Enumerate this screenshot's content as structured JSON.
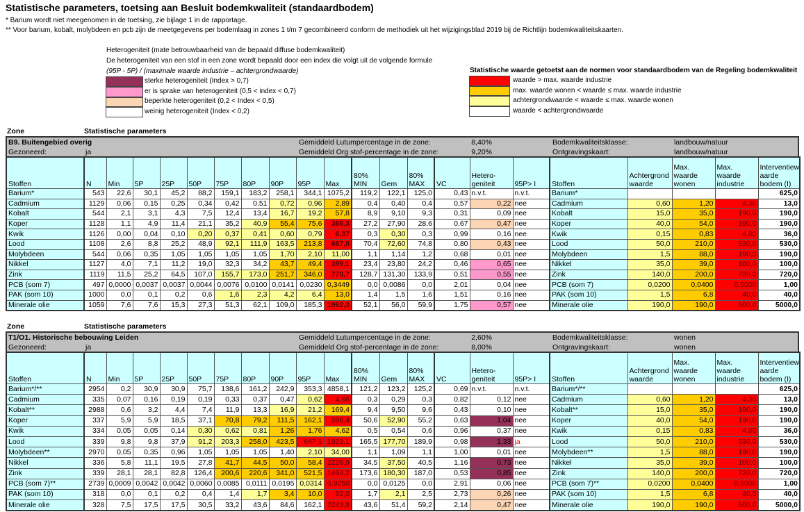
{
  "title": "Statistische parameters, toetsing aan Besluit bodemkwaliteit (standaardbodem)",
  "notes": [
    "* Barium wordt niet meegenomen in de toetsing, zie bijlage 1 in de rapportage.",
    "** Voor barium, kobalt, molybdeen en pcb zijn de meetgegevens per bodemlaag in zones 1 t/m 7 gecombineerd conform de methodiek uit het wijzigingsblad 2019 bij de Richtlijn bodemkwaliteitskaarten."
  ],
  "hetero_legend": {
    "heading": "Heterogeniteit (mate betrouwbaarheid van de bepaald diffuse bodemkwaliteit)",
    "description": "De heterogeniteit van een stof in een zone wordt bepaald door een index die volgt uit de volgende formule",
    "formula": "(95P - 5P) / (maximale waarde industrie – achtergrondwaarde)",
    "items": [
      {
        "label": "sterke heterogeniteit (Index > 0,7)",
        "color": "#953159"
      },
      {
        "label": "er is sprake van heterogeniteit (0,5 < index < 0,7)",
        "color": "#ff99cc"
      },
      {
        "label": "beperkte heterogeniteit (0,2 < Index < 0,5)",
        "color": "#fcd5b4"
      },
      {
        "label": "weinig heterogeniteit (Index < 0,2)",
        "color": "#ffffff"
      }
    ]
  },
  "norm_legend": {
    "heading": "Statistische waarde getoetst aan de normen voor standaardbodem van de Regeling bodemkwaliteit",
    "items": [
      {
        "label": "waarde > max. waarde industrie",
        "color": "#ff0000"
      },
      {
        "label": "max. waarde wonen < waarde ≤ max. waarde industrie",
        "color": "#ffcc00"
      },
      {
        "label": "achtergrondwaarde < waarde ≤ max. waarde wonen",
        "color": "#ffff99"
      },
      {
        "label": "waarde < achtergrondwaarde",
        "color": "#ffffff"
      }
    ]
  },
  "zone_label": "Zone",
  "stat_label": "Statistische parameters",
  "columns": [
    "Stoffen",
    "N",
    "Min",
    "5P",
    "25P",
    "50P",
    "75P",
    "80P",
    "90P",
    "95P",
    "Max",
    "80% MIN",
    "Gem",
    "80% MAX",
    "VC",
    "Hetero-geniteit",
    "95P> I",
    "Stoffen",
    "Achtergrond waarde",
    "Max. waarde wonen",
    "Max. waarde industrie",
    "Interventiew aarde bodem (I)"
  ],
  "zones": [
    {
      "title": "B9. Buitengebied overig",
      "gezoneerd_label": "Gezoneerd:",
      "gezoneerd_value": "ja",
      "lutum_label": "Gemiddeld Lutumpercentage in de zone:",
      "lutum_value": "8,40%",
      "org_label": "Gemiddeld Org stof-percentage in de zone:",
      "org_value": "9,20%",
      "klasse_label": "Bodemkwaliteitsklasse:",
      "klasse_value": "landbouw/natuur",
      "kaart_label": "Ontgravingskaart:",
      "kaart_value": "landbouw/natuur",
      "rows": [
        {
          "values": [
            "Barium*",
            "543",
            "22,6",
            "30,1",
            "45,2",
            "88,2",
            "159,1",
            "183,2",
            "258,1",
            "344,1",
            "1075,2",
            "119,2",
            "122,1",
            "125,0",
            "0,43",
            "n.v.t.",
            "n.v.t.",
            "Barium*",
            "",
            "",
            "",
            "625,0"
          ],
          "levels": {},
          "hetero": "na"
        },
        {
          "values": [
            "Cadmium",
            "1129",
            "0,06",
            "0,15",
            "0,25",
            "0,34",
            "0,42",
            "0,51",
            "0,72",
            "0,96",
            "2,89",
            "0,4",
            "0,40",
            "0,4",
            "0,57",
            "0,22",
            "nee",
            "Cadmium",
            "0,60",
            "1,20",
            "4,30",
            "13,0"
          ],
          "levels": {
            "8": "bg",
            "9": "bg",
            "10": "wonen"
          },
          "hetero": "limited"
        },
        {
          "values": [
            "Kobalt",
            "544",
            "2,1",
            "3,1",
            "4,3",
            "7,5",
            "12,4",
            "13,4",
            "16,7",
            "19,2",
            "57,8",
            "8,9",
            "9,10",
            "9,3",
            "0,31",
            "0,09",
            "nee",
            "Kobalt",
            "15,0",
            "35,0",
            "190,0",
            "190,0"
          ],
          "levels": {
            "8": "bg",
            "9": "bg",
            "10": "wonen"
          },
          "hetero": "low"
        },
        {
          "values": [
            "Koper",
            "1128",
            "1,1",
            "4,9",
            "11,4",
            "21,1",
            "35,2",
            "40,9",
            "55,4",
            "75,6",
            "366,3",
            "27,2",
            "27,90",
            "28,6",
            "0,67",
            "0,47",
            "nee",
            "Koper",
            "40,0",
            "54,0",
            "190,0",
            "190,0"
          ],
          "levels": {
            "7": "bg",
            "8": "wonen",
            "9": "wonen",
            "10": "ind"
          },
          "hetero": "limited"
        },
        {
          "values": [
            "Kwik",
            "1126",
            "0,00",
            "0,04",
            "0,10",
            "0,20",
            "0,37",
            "0,41",
            "0,60",
            "0,79",
            "6,37",
            "0,3",
            "0,30",
            "0,3",
            "0,99",
            "0,16",
            "nee",
            "Kwik",
            "0,15",
            "0,83",
            "4,80",
            "36,0"
          ],
          "levels": {
            "5": "bg",
            "6": "bg",
            "7": "bg",
            "8": "bg",
            "9": "bg",
            "10": "ind",
            "12": "bg"
          },
          "hetero": "low"
        },
        {
          "values": [
            "Lood",
            "1108",
            "2,6",
            "8,8",
            "25,2",
            "48,9",
            "92,1",
            "111,9",
            "163,5",
            "213,8",
            "667,8",
            "70,4",
            "72,60",
            "74,8",
            "0,80",
            "0,43",
            "nee",
            "Lood",
            "50,0",
            "210,0",
            "530,0",
            "530,0"
          ],
          "levels": {
            "6": "bg",
            "7": "bg",
            "8": "bg",
            "9": "wonen",
            "10": "ind",
            "12": "bg"
          },
          "hetero": "limited"
        },
        {
          "values": [
            "Molybdeen",
            "544",
            "0,06",
            "0,35",
            "1,05",
            "1,05",
            "1,05",
            "1,05",
            "1,70",
            "2,10",
            "11,00",
            "1,1",
            "1,14",
            "1,2",
            "0,68",
            "0,01",
            "nee",
            "Molybdeen",
            "1,5",
            "88,0",
            "190,0",
            "190,0"
          ],
          "levels": {
            "8": "bg",
            "9": "bg",
            "10": "bg"
          },
          "hetero": "low"
        },
        {
          "values": [
            "Nikkel",
            "1127",
            "4,0",
            "7,1",
            "11,2",
            "19,0",
            "32,3",
            "34,2",
            "43,7",
            "49,4",
            "399,1",
            "23,4",
            "23,80",
            "24,2",
            "0,46",
            "0,65",
            "nee",
            "Nikkel",
            "35,0",
            "39,0",
            "100,0",
            "100,0"
          ],
          "levels": {
            "8": "wonen",
            "9": "wonen",
            "10": "ind"
          },
          "hetero": "present"
        },
        {
          "values": [
            "Zink",
            "1119",
            "11,5",
            "25,2",
            "64,5",
            "107,0",
            "155,7",
            "173,0",
            "251,7",
            "346,0",
            "770,7",
            "128,7",
            "131,30",
            "133,9",
            "0,51",
            "0,55",
            "nee",
            "Zink",
            "140,0",
            "200,0",
            "720,0",
            "720,0"
          ],
          "levels": {
            "6": "bg",
            "7": "bg",
            "8": "wonen",
            "9": "wonen",
            "10": "ind"
          },
          "hetero": "present"
        },
        {
          "values": [
            "PCB (som 7)",
            "497",
            "0,0000",
            "0,0037",
            "0,0037",
            "0,0044",
            "0,0076",
            "0,0100",
            "0,0141",
            "0,0230",
            "0,3449",
            "0,0",
            "0,0086",
            "0,0",
            "2,01",
            "0,04",
            "nee",
            "PCB (som 7)",
            "0,0200",
            "0,0400",
            "0,5000",
            "1,00"
          ],
          "levels": {
            "10": "wonen"
          },
          "hetero": "low"
        },
        {
          "values": [
            "PAK (som 10)",
            "1000",
            "0,0",
            "0,1",
            "0,2",
            "0,6",
            "1,6",
            "2,3",
            "4,2",
            "6,4",
            "13,0",
            "1,4",
            "1,5",
            "1,6",
            "1,51",
            "0,16",
            "nee",
            "PAK (som 10)",
            "1,5",
            "6,8",
            "40,0",
            "40,0"
          ],
          "levels": {
            "6": "bg",
            "7": "bg",
            "8": "bg",
            "9": "bg",
            "10": "wonen"
          },
          "hetero": "low"
        },
        {
          "values": [
            "Minerale olie",
            "1059",
            "7,6",
            "7,6",
            "15,3",
            "27,3",
            "51,3",
            "62,1",
            "109,0",
            "185,3",
            "1962,3",
            "52,1",
            "56,0",
            "59,9",
            "1,75",
            "0,57",
            "nee",
            "Minerale olie",
            "190,0",
            "190,0",
            "500,0",
            "5000,0"
          ],
          "levels": {
            "10": "ind"
          },
          "hetero": "present"
        }
      ]
    },
    {
      "title": "T1/O1. Historische bebouwing Leiden",
      "gezoneerd_label": "Gezoneerd:",
      "gezoneerd_value": "ja",
      "lutum_label": "Gemiddeld Lutumpercentage in de zone:",
      "lutum_value": "2,60%",
      "org_label": "Gemiddeld Org stof-percentage in de zone:",
      "org_value": "8,00%",
      "klasse_label": "Bodemkwaliteitsklasse:",
      "klasse_value": "wonen",
      "kaart_label": "Ontgravingskaart:",
      "kaart_value": "wonen",
      "rows": [
        {
          "values": [
            "Barium*/**",
            "2954",
            "0,2",
            "30,9",
            "30,9",
            "75,7",
            "138,6",
            "161,2",
            "242,9",
            "353,3",
            "4858,1",
            "121,2",
            "123,2",
            "125,2",
            "0,69",
            "n.v.t.",
            "n.v.t.",
            "Barium*/**",
            "",
            "",
            "",
            "625,0"
          ],
          "levels": {},
          "hetero": "na"
        },
        {
          "values": [
            "Cadmium",
            "335",
            "0,07",
            "0,16",
            "0,19",
            "0,19",
            "0,33",
            "0,37",
            "0,47",
            "0,62",
            "4,68",
            "0,3",
            "0,29",
            "0,3",
            "0,82",
            "0,12",
            "nee",
            "Cadmium",
            "0,60",
            "1,20",
            "4,30",
            "13,0"
          ],
          "levels": {
            "9": "bg",
            "10": "ind"
          },
          "hetero": "low"
        },
        {
          "values": [
            "Kobalt**",
            "2988",
            "0,6",
            "3,2",
            "4,4",
            "7,4",
            "11,9",
            "13,3",
            "16,9",
            "21,2",
            "169,4",
            "9,4",
            "9,50",
            "9,6",
            "0,43",
            "0,10",
            "nee",
            "Kobalt**",
            "15,0",
            "35,0",
            "190,0",
            "190,0"
          ],
          "levels": {
            "8": "bg",
            "9": "bg",
            "10": "wonen"
          },
          "hetero": "low"
        },
        {
          "values": [
            "Koper",
            "337",
            "5,9",
            "5,9",
            "18,5",
            "37,1",
            "70,8",
            "79,2",
            "111,5",
            "162,1",
            "596,4",
            "50,6",
            "52,90",
            "55,2",
            "0,63",
            "1,04",
            "nee",
            "Koper",
            "40,0",
            "54,0",
            "190,0",
            "190,0"
          ],
          "levels": {
            "6": "wonen",
            "7": "wonen",
            "8": "wonen",
            "9": "wonen",
            "10": "ind",
            "12": "bg"
          },
          "hetero": "strong"
        },
        {
          "values": [
            "Kwik",
            "334",
            "0,05",
            "0,05",
            "0,14",
            "0,30",
            "0,62",
            "0,81",
            "1,26",
            "1,76",
            "4,62",
            "0,5",
            "0,54",
            "0,6",
            "0,96",
            "0,37",
            "nee",
            "Kwik",
            "0,15",
            "0,83",
            "4,80",
            "36,0"
          ],
          "levels": {
            "5": "bg",
            "6": "bg",
            "7": "bg",
            "8": "wonen",
            "9": "wonen",
            "10": "wonen"
          },
          "hetero": "low"
        },
        {
          "values": [
            "Lood",
            "339",
            "9,8",
            "9,8",
            "37,9",
            "91,2",
            "203,3",
            "258,0",
            "423,5",
            "647,1",
            "1823,1",
            "165,5",
            "177,70",
            "189,9",
            "0,98",
            "1,33",
            "ja",
            "Lood",
            "50,0",
            "210,0",
            "530,0",
            "530,0"
          ],
          "levels": {
            "5": "bg",
            "6": "bg",
            "7": "wonen",
            "8": "wonen",
            "9": "ind",
            "10": "ind",
            "12": "bg"
          },
          "hetero": "strong"
        },
        {
          "values": [
            "Molybdeen**",
            "2970",
            "0,05",
            "0,35",
            "0,96",
            "1,05",
            "1,05",
            "1,05",
            "1,40",
            "2,10",
            "34,00",
            "1,1",
            "1,09",
            "1,1",
            "1,00",
            "0,01",
            "nee",
            "Molybdeen**",
            "1,5",
            "88,0",
            "190,0",
            "190,0"
          ],
          "levels": {
            "9": "bg",
            "10": "bg"
          },
          "hetero": "low"
        },
        {
          "values": [
            "Nikkel",
            "336",
            "5,8",
            "11,1",
            "19,5",
            "27,8",
            "41,7",
            "44,5",
            "50,0",
            "58,4",
            "2226,9",
            "34,5",
            "37,50",
            "40,5",
            "1,16",
            "0,73",
            "nee",
            "Nikkel",
            "35,0",
            "39,0",
            "100,0",
            "100,0"
          ],
          "levels": {
            "6": "wonen",
            "7": "wonen",
            "8": "wonen",
            "9": "wonen",
            "10": "ind",
            "12": "bg"
          },
          "hetero": "strong"
        },
        {
          "values": [
            "Zink",
            "339",
            "28,1",
            "28,1",
            "82,8",
            "126,4",
            "200,6",
            "220,6",
            "341,0",
            "521,5",
            "1464,2",
            "173,6",
            "180,30",
            "187,0",
            "0,53",
            "0,85",
            "nee",
            "Zink",
            "140,0",
            "200,0",
            "720,0",
            "720,0"
          ],
          "levels": {
            "6": "wonen",
            "7": "wonen",
            "8": "wonen",
            "9": "wonen",
            "10": "ind",
            "12": "bg"
          },
          "hetero": "strong"
        },
        {
          "values": [
            "PCB (som 7)**",
            "2739",
            "0,0009",
            "0,0042",
            "0,0042",
            "0,0060",
            "0,0085",
            "0,0111",
            "0,0195",
            "0,0314",
            "0,9250",
            "0,0",
            "0,0125",
            "0,0",
            "2,91",
            "0,06",
            "nee",
            "PCB (som 7)**",
            "0,0200",
            "0,0400",
            "0,5000",
            "1,00"
          ],
          "levels": {
            "9": "bg",
            "10": "ind"
          },
          "hetero": "low"
        },
        {
          "values": [
            "PAK (som 10)",
            "318",
            "0,0",
            "0,1",
            "0,2",
            "0,4",
            "1,4",
            "1,7",
            "3,4",
            "10,0",
            "52,0",
            "1,7",
            "2,1",
            "2,5",
            "2,73",
            "0,26",
            "nee",
            "PAK (som 10)",
            "1,5",
            "6,8",
            "40,0",
            "40,0"
          ],
          "levels": {
            "7": "bg",
            "8": "wonen",
            "9": "wonen",
            "10": "ind",
            "12": "bg"
          },
          "hetero": "limited"
        },
        {
          "values": [
            "Minerale olie",
            "328",
            "7,5",
            "17,5",
            "17,5",
            "30,5",
            "33,2",
            "43,6",
            "84,6",
            "162,1",
            "2243,9",
            "43,6",
            "51,4",
            "59,2",
            "2,14",
            "0,47",
            "nee",
            "Minerale olie",
            "190,0",
            "190,0",
            "500,0",
            "5000,0"
          ],
          "levels": {
            "10": "ind"
          },
          "hetero": "limited"
        }
      ]
    }
  ]
}
